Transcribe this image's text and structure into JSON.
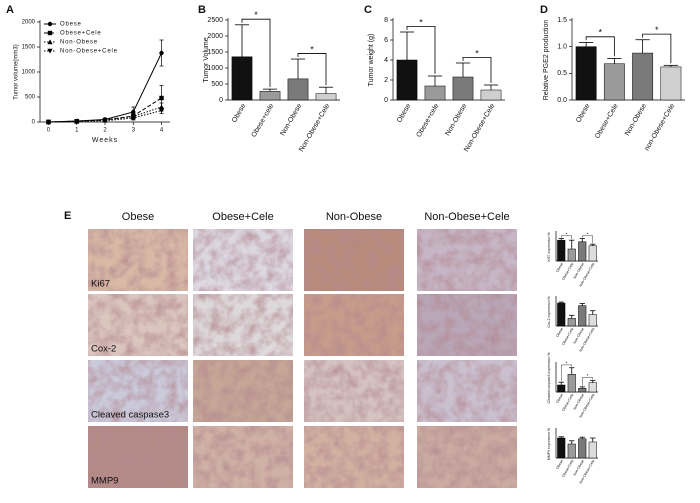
{
  "chart_data": [
    {
      "type": "line",
      "panel": "A",
      "ylabel": "Tumor volume(mm3)",
      "xlabel": "Weeks",
      "x": [
        0,
        1,
        2,
        3,
        4
      ],
      "xlim": [
        -0.3,
        4.3
      ],
      "xticks": [
        0,
        1,
        2,
        3,
        4
      ],
      "ylim": [
        0,
        2000
      ],
      "yticks": [
        0,
        500,
        1000,
        1500,
        2000
      ],
      "legend": "upper left",
      "series": [
        {
          "name": "Obese",
          "color": "#000000",
          "marker": "circle",
          "line_style": "solid",
          "values": [
            0,
            20,
            50,
            200,
            1380
          ],
          "errors": [
            0,
            10,
            20,
            100,
            260
          ]
        },
        {
          "name": "Obese+Cele",
          "color": "#000000",
          "marker": "square",
          "line_style": "dashed",
          "values": [
            0,
            15,
            40,
            120,
            480
          ],
          "errors": [
            0,
            8,
            15,
            60,
            250
          ]
        },
        {
          "name": "Non-Obese",
          "color": "#000000",
          "marker": "triangle-up",
          "line_style": "dotted",
          "values": [
            0,
            10,
            35,
            110,
            300
          ],
          "errors": [
            0,
            5,
            15,
            60,
            80
          ]
        },
        {
          "name": "Non-Obese+Cele",
          "color": "#000000",
          "marker": "triangle-down",
          "line_style": "dotted",
          "values": [
            0,
            10,
            25,
            80,
            230
          ],
          "errors": [
            0,
            5,
            10,
            40,
            60
          ]
        }
      ]
    },
    {
      "type": "bar",
      "panel": "B",
      "ylabel": "Tumor Volume",
      "categories": [
        "Obese",
        "Obese+cele",
        "Non-Obese",
        "Non-Obese+Cele"
      ],
      "values": [
        1350,
        270,
        660,
        200
      ],
      "errors": [
        1000,
        70,
        620,
        200
      ],
      "colors": [
        "#111111",
        "#9a9a9a",
        "#7a7a7a",
        "#cfcfcf"
      ],
      "ylim": [
        0,
        2500
      ],
      "yticks": [
        0,
        500,
        1000,
        1500,
        2000,
        2500
      ],
      "significance": [
        {
          "label": "*",
          "between": [
            0,
            1
          ]
        },
        {
          "label": "*",
          "between": [
            2,
            3
          ]
        }
      ]
    },
    {
      "type": "bar",
      "panel": "C",
      "ylabel": "Tumor weight (g)",
      "categories": [
        "Obese",
        "Obese+cele",
        "Non-Obese",
        "Non-Obese+Cele"
      ],
      "values": [
        4.0,
        1.4,
        2.3,
        1.0
      ],
      "errors": [
        2.8,
        1.0,
        1.4,
        0.5
      ],
      "colors": [
        "#111111",
        "#9a9a9a",
        "#7a7a7a",
        "#cfcfcf"
      ],
      "ylim": [
        0,
        8
      ],
      "yticks": [
        0,
        2,
        4,
        6,
        8
      ],
      "significance": [
        {
          "label": "*",
          "between": [
            0,
            1
          ]
        },
        {
          "label": "*",
          "between": [
            2,
            3
          ]
        }
      ]
    },
    {
      "type": "bar",
      "panel": "D",
      "ylabel": "Relative PGE2 production",
      "categories": [
        "Obese",
        "Obese+Cele",
        "Non-Obese",
        "non-Obese+Cele"
      ],
      "values": [
        1.0,
        0.68,
        0.88,
        0.62
      ],
      "errors": [
        0.08,
        0.1,
        0.25,
        0.03
      ],
      "colors": [
        "#111111",
        "#9a9a9a",
        "#7a7a7a",
        "#cfcfcf"
      ],
      "ylim": [
        0,
        1.5
      ],
      "yticks": [
        {
          "value": 0,
          "label": "0.0"
        },
        {
          "value": 0.5,
          "label": "0.5"
        },
        {
          "value": 1,
          "label": "1.0"
        },
        {
          "value": 1.5,
          "label": "1.5"
        }
      ],
      "significance": [
        {
          "label": "*",
          "between": [
            0,
            1
          ]
        },
        {
          "label": "*",
          "between": [
            2,
            3
          ]
        }
      ]
    },
    {
      "type": "bar",
      "ylabel": "Ki67 expression %",
      "categories": [
        "Obese",
        "Obese+Cele",
        "Non-Obese",
        "Non-Obese+Cele"
      ],
      "values": [
        52,
        30,
        48,
        38
      ],
      "errors": [
        4,
        22,
        8,
        4
      ],
      "colors": [
        "#111111",
        "#9a9a9a",
        "#7a7a7a",
        "#dddddd"
      ],
      "ylim": [
        0,
        70
      ],
      "significance": [
        {
          "label": "*",
          "between": [
            0,
            1
          ]
        },
        {
          "label": "*",
          "between": [
            2,
            3
          ]
        }
      ]
    },
    {
      "type": "bar",
      "ylabel": "Cox-2 expression %",
      "categories": [
        "Obese",
        "Obese+Cele",
        "Non-Obese",
        "Non-Obese+Cele"
      ],
      "values": [
        90,
        30,
        80,
        45
      ],
      "errors": [
        4,
        12,
        8,
        15
      ],
      "colors": [
        "#111111",
        "#9a9a9a",
        "#7a7a7a",
        "#dddddd"
      ],
      "ylim": [
        0,
        110
      ]
    },
    {
      "type": "bar",
      "ylabel": "Cleaved caspase3 expression %",
      "categories": [
        "Obese",
        "Obese+Cele",
        "Non-Obese",
        "Non-Obese+Cele"
      ],
      "values": [
        15,
        38,
        8,
        20
      ],
      "errors": [
        6,
        14,
        3,
        5
      ],
      "colors": [
        "#111111",
        "#9a9a9a",
        "#7a7a7a",
        "#dddddd"
      ],
      "ylim": [
        0,
        60
      ],
      "significance": [
        {
          "label": "*",
          "between": [
            0,
            1
          ]
        },
        {
          "label": "*",
          "between": [
            2,
            3
          ]
        }
      ]
    },
    {
      "type": "bar",
      "ylabel": "MMP9 expression %",
      "categories": [
        "Obese",
        "Obese+Cele",
        "Non-Obese",
        "Non-Obese+Cele"
      ],
      "values": [
        50,
        35,
        48,
        40
      ],
      "errors": [
        3,
        8,
        4,
        10
      ],
      "colors": [
        "#111111",
        "#9a9a9a",
        "#7a7a7a",
        "#dddddd"
      ],
      "ylim": [
        0,
        70
      ]
    }
  ],
  "panel_e": {
    "label": "E",
    "columns": [
      "Obese",
      "Obese+Cele",
      "Non-Obese",
      "Non-Obese+Cele"
    ],
    "rows": [
      "Ki67",
      "Cox-2",
      "Cleaved caspase3",
      "MMP9"
    ]
  }
}
